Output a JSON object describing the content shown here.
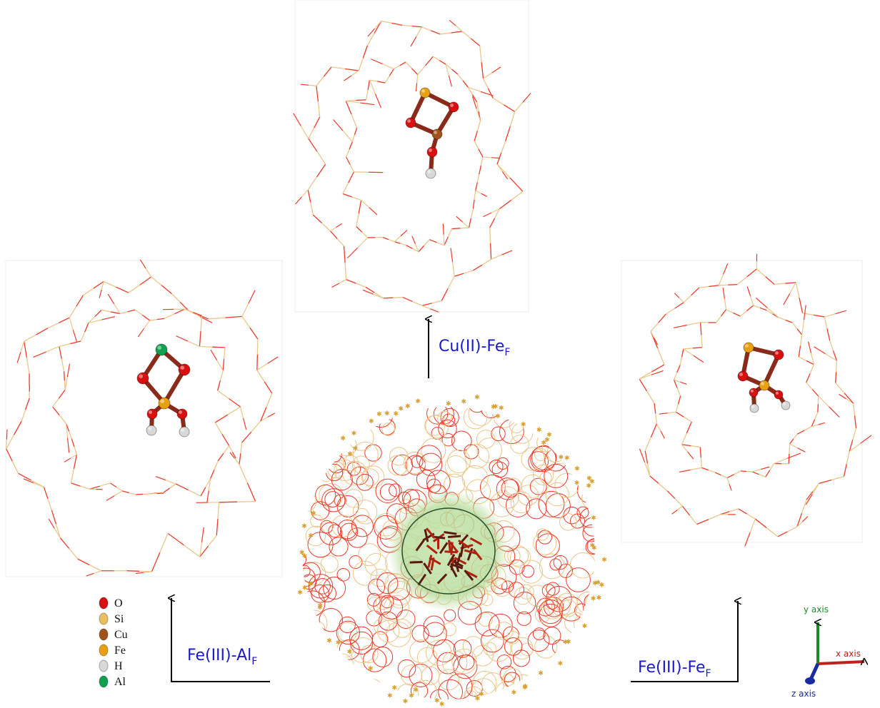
{
  "panels": [
    {
      "label": "Cu(II)-Fe",
      "subscript": "F"
    },
    {
      "label": "Fe(III)-Al",
      "subscript": "F"
    },
    {
      "label": "Fe(III)-Fe",
      "subscript": "F"
    }
  ],
  "legend": [
    {
      "name": "O",
      "color": "#d81010"
    },
    {
      "name": "Si",
      "color": "#e8c060"
    },
    {
      "name": "Cu",
      "color": "#a0521a"
    },
    {
      "name": "Fe",
      "color": "#e8a010"
    },
    {
      "name": "H",
      "color": "#d8d8d8"
    },
    {
      "name": "Al",
      "color": "#10a050"
    }
  ],
  "axes": {
    "y": "y axis",
    "x": "x axis",
    "z": "z axis"
  }
}
